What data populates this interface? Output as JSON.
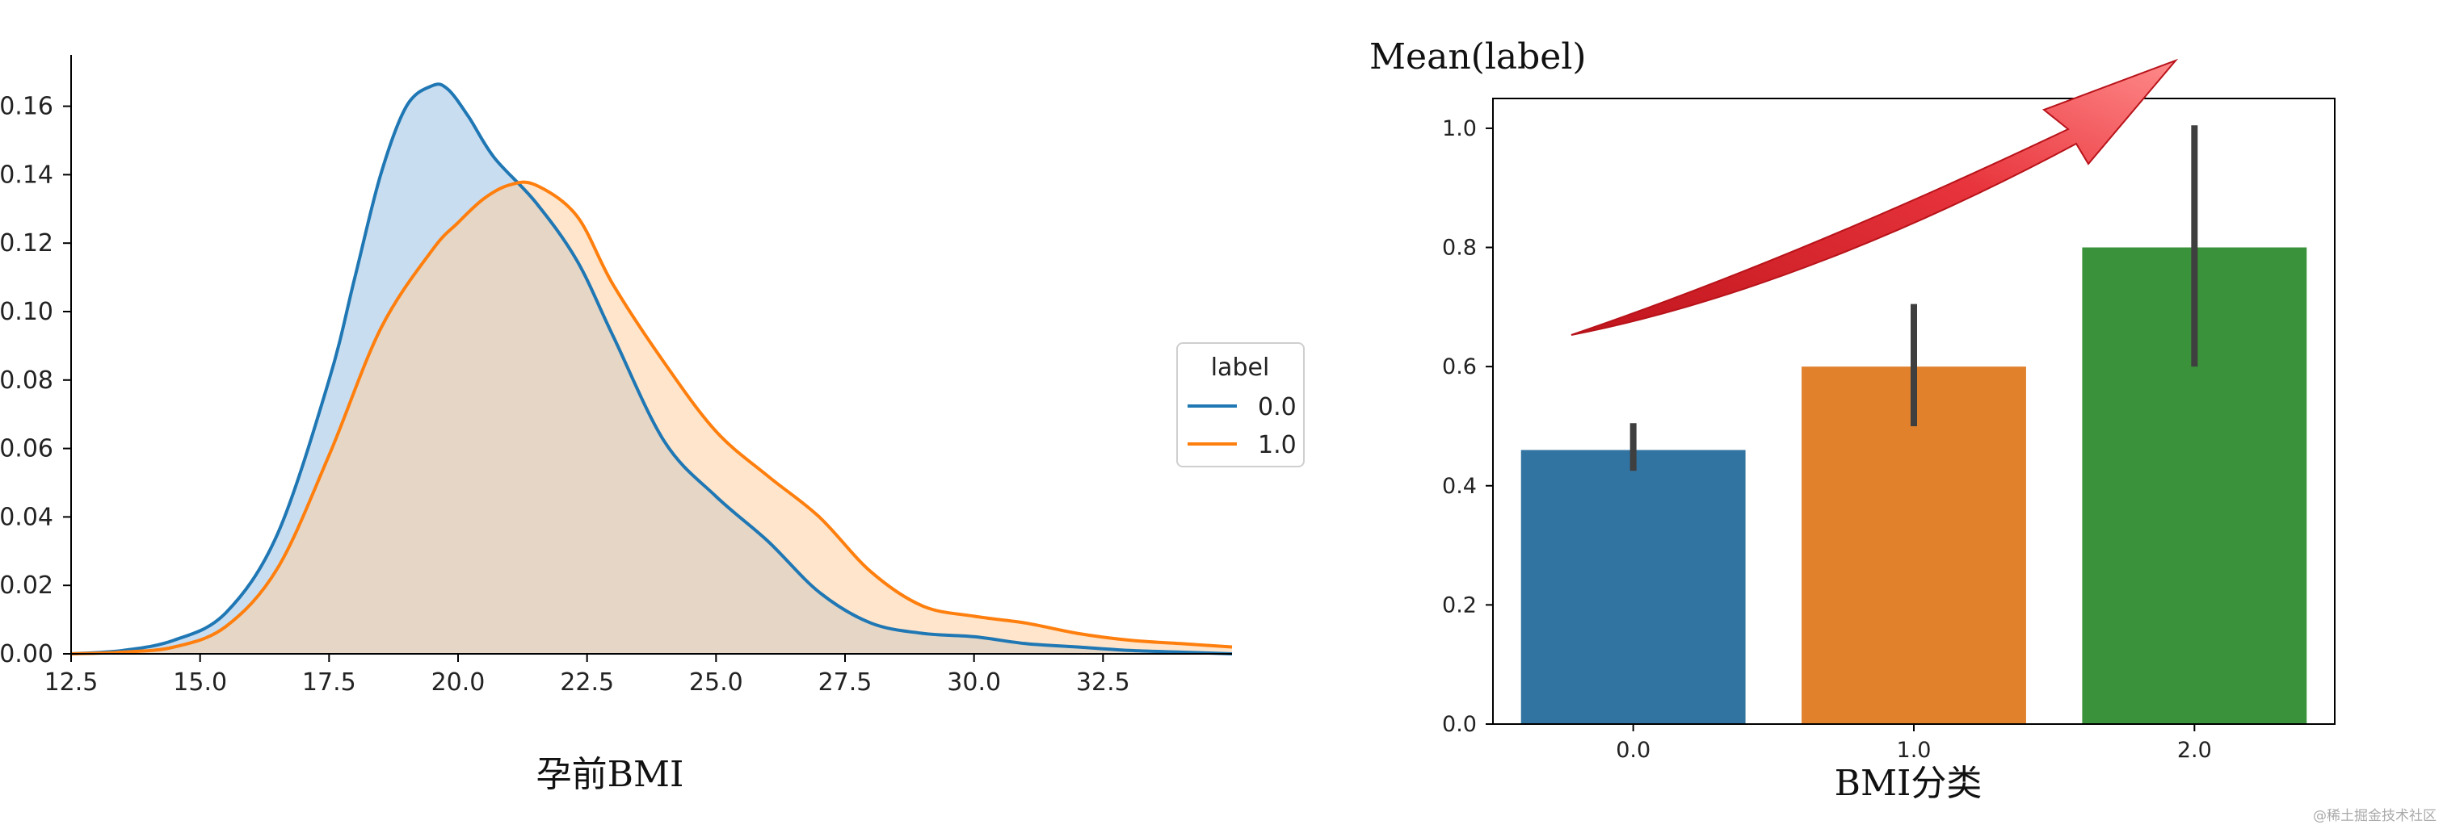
{
  "chart_data": [
    {
      "type": "area",
      "subtype": "kde",
      "xlabel": "孕前BMI",
      "ylabel": "",
      "xlim": [
        12.5,
        35
      ],
      "ylim": [
        0,
        0.175
      ],
      "x_ticks": [
        "12.5",
        "15.0",
        "17.5",
        "20.0",
        "22.5",
        "25.0",
        "27.5",
        "30.0",
        "32.5"
      ],
      "y_ticks": [
        "0.00",
        "0.02",
        "0.04",
        "0.06",
        "0.08",
        "0.10",
        "0.12",
        "0.14",
        "0.16"
      ],
      "legend": {
        "title": "label",
        "entries": [
          "0.0",
          "1.0"
        ],
        "placement": "right"
      },
      "series": [
        {
          "name": "0.0",
          "color": "#1f77b4",
          "fill": "#c6dbef",
          "x": [
            12.5,
            13.5,
            14.5,
            15.5,
            16.5,
            17.5,
            18.0,
            18.5,
            19.0,
            19.5,
            19.8,
            20.2,
            20.7,
            21.5,
            22.3,
            23.0,
            24.0,
            25.0,
            26.0,
            27.0,
            28.0,
            29.0,
            30.0,
            31.0,
            32.0,
            33.0,
            34.0,
            35.0
          ],
          "y": [
            0.0,
            0.001,
            0.004,
            0.012,
            0.035,
            0.08,
            0.11,
            0.14,
            0.16,
            0.166,
            0.165,
            0.157,
            0.145,
            0.132,
            0.115,
            0.093,
            0.062,
            0.046,
            0.033,
            0.018,
            0.009,
            0.006,
            0.005,
            0.003,
            0.002,
            0.001,
            0.0005,
            0.0
          ]
        },
        {
          "name": "1.0",
          "color": "#ff7f0e",
          "fill": "#fdd0a2",
          "x": [
            12.5,
            13.5,
            14.5,
            15.5,
            16.5,
            17.5,
            18.5,
            19.5,
            20.0,
            20.5,
            21.0,
            21.5,
            22.3,
            23.0,
            24.0,
            25.0,
            26.0,
            27.0,
            28.0,
            29.0,
            30.0,
            31.0,
            32.0,
            33.0,
            34.0,
            35.0
          ],
          "y": [
            0.0,
            0.0005,
            0.002,
            0.008,
            0.025,
            0.058,
            0.095,
            0.118,
            0.126,
            0.133,
            0.137,
            0.137,
            0.128,
            0.108,
            0.085,
            0.065,
            0.052,
            0.04,
            0.024,
            0.014,
            0.011,
            0.009,
            0.006,
            0.004,
            0.003,
            0.002
          ]
        }
      ]
    },
    {
      "type": "bar",
      "title": "Mean(label)",
      "xlabel": "BMI分类",
      "ylabel": "",
      "ylim": [
        0,
        1.05
      ],
      "categories": [
        "0.0",
        "1.0",
        "2.0"
      ],
      "values": [
        0.46,
        0.6,
        0.8
      ],
      "error_low": [
        0.425,
        0.5,
        0.6
      ],
      "error_high": [
        0.505,
        0.705,
        1.005
      ],
      "colors": [
        "#3274a1",
        "#e1812c",
        "#3a923a"
      ],
      "y_ticks": [
        "0.0",
        "0.2",
        "0.4",
        "0.6",
        "0.8",
        "1.0"
      ]
    }
  ],
  "watermark": "@稀土掘金技术社区"
}
